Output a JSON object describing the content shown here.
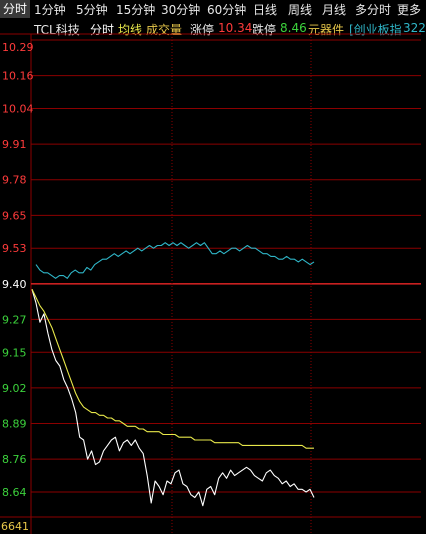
{
  "tabs": [
    {
      "label": "分时",
      "active": true
    },
    {
      "label": "1分钟"
    },
    {
      "label": "5分钟"
    },
    {
      "label": "15分钟"
    },
    {
      "label": "30分钟"
    },
    {
      "label": "60分钟"
    },
    {
      "label": "日线"
    },
    {
      "label": "周线"
    },
    {
      "label": "月线"
    },
    {
      "label": "多分时"
    },
    {
      "label": "更多"
    }
  ],
  "info": {
    "stock_name": "TCL科技",
    "mode": "分时",
    "avg_line_label": "均线",
    "volume_label": "成交量",
    "limit_up_label": "涨停",
    "limit_up_value": "10.34",
    "limit_down_label": "跌停",
    "limit_down_value": "8.46",
    "sector": "元器件",
    "index_label": "[创业板指",
    "index_value": "322"
  },
  "colors": {
    "background": "#000000",
    "grid": "#8b0000",
    "up": "#ff3b3b",
    "down": "#3cd23c",
    "ref": "#ffffff",
    "price_line": "#ffffff",
    "avg_line": "#e8e84a",
    "index_line": "#2fb6c8",
    "volume_text": "#e8c84a"
  },
  "chart_data": {
    "type": "line",
    "reference_price": 9.4,
    "ylim": [
      8.64,
      10.29
    ],
    "y_ticks": [
      "10.29",
      "10.16",
      "10.04",
      "9.91",
      "9.78",
      "9.65",
      "9.53",
      "9.40",
      "9.27",
      "9.15",
      "9.02",
      "8.89",
      "8.76",
      "8.64"
    ],
    "volume_axis_label": "6641",
    "series": [
      {
        "key": "price",
        "values": [
          9.38,
          9.33,
          9.26,
          9.29,
          9.22,
          9.16,
          9.12,
          9.1,
          9.05,
          9.02,
          8.98,
          8.93,
          8.84,
          8.83,
          8.76,
          8.79,
          8.74,
          8.75,
          8.79,
          8.81,
          8.83,
          8.84,
          8.79,
          8.82,
          8.83,
          8.81,
          8.83,
          8.8,
          8.78,
          8.7,
          8.6,
          8.68,
          8.66,
          8.63,
          8.68,
          8.67,
          8.71,
          8.72,
          8.67,
          8.66,
          8.63,
          8.62,
          8.64,
          8.59,
          8.65,
          8.66,
          8.63,
          8.69,
          8.71,
          8.69,
          8.72,
          8.7,
          8.71,
          8.72,
          8.73,
          8.72,
          8.7,
          8.69,
          8.68,
          8.71,
          8.72,
          8.7,
          8.69,
          8.67,
          8.68,
          8.66,
          8.67,
          8.65,
          8.65,
          8.64,
          8.65,
          8.62
        ]
      },
      {
        "key": "avg",
        "values": [
          9.38,
          9.35,
          9.32,
          9.3,
          9.27,
          9.24,
          9.2,
          9.16,
          9.12,
          9.08,
          9.04,
          9.0,
          8.97,
          8.95,
          8.94,
          8.93,
          8.93,
          8.92,
          8.92,
          8.91,
          8.91,
          8.9,
          8.9,
          8.89,
          8.88,
          8.88,
          8.88,
          8.87,
          8.87,
          8.86,
          8.86,
          8.86,
          8.86,
          8.85,
          8.85,
          8.85,
          8.85,
          8.84,
          8.84,
          8.84,
          8.84,
          8.83,
          8.83,
          8.83,
          8.83,
          8.83,
          8.82,
          8.82,
          8.82,
          8.82,
          8.82,
          8.82,
          8.82,
          8.81,
          8.81,
          8.81,
          8.81,
          8.81,
          8.81,
          8.81,
          8.81,
          8.81,
          8.81,
          8.81,
          8.81,
          8.81,
          8.81,
          8.81,
          8.81,
          8.8,
          8.8,
          8.8
        ]
      },
      {
        "key": "index",
        "values": [
          9.47,
          9.45,
          9.44,
          9.44,
          9.43,
          9.42,
          9.43,
          9.43,
          9.42,
          9.44,
          9.45,
          9.44,
          9.44,
          9.46,
          9.45,
          9.47,
          9.48,
          9.49,
          9.49,
          9.5,
          9.51,
          9.5,
          9.51,
          9.52,
          9.51,
          9.52,
          9.53,
          9.52,
          9.53,
          9.54,
          9.53,
          9.54,
          9.54,
          9.55,
          9.54,
          9.55,
          9.54,
          9.55,
          9.54,
          9.53,
          9.54,
          9.55,
          9.54,
          9.55,
          9.53,
          9.51,
          9.51,
          9.52,
          9.51,
          9.52,
          9.53,
          9.53,
          9.52,
          9.53,
          9.54,
          9.53,
          9.53,
          9.52,
          9.51,
          9.51,
          9.5,
          9.5,
          9.49,
          9.49,
          9.5,
          9.49,
          9.49,
          9.48,
          9.49,
          9.48,
          9.47,
          9.48
        ]
      }
    ]
  }
}
